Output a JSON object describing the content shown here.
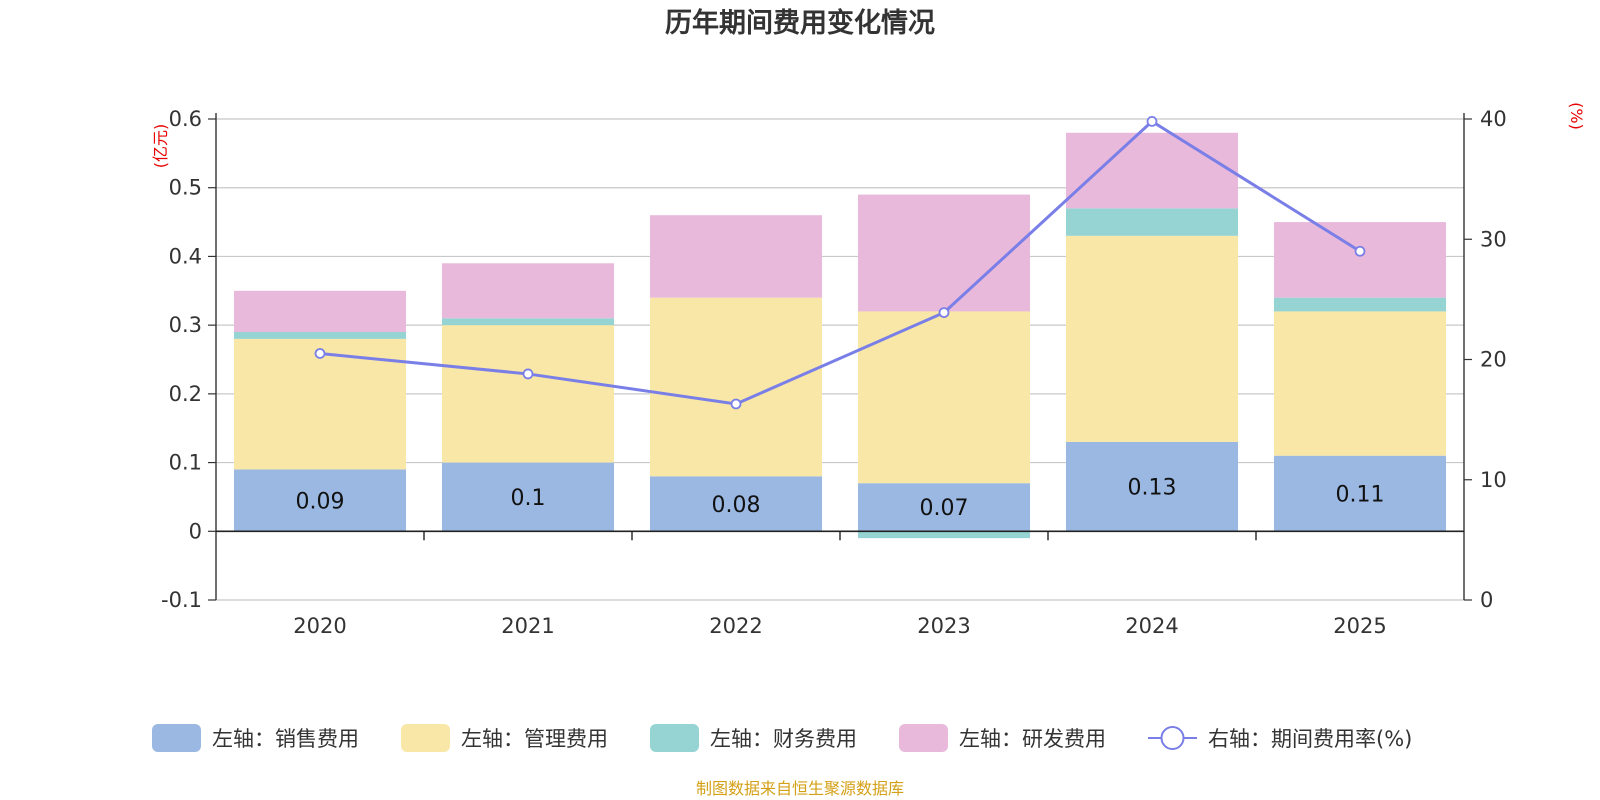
{
  "chart_data": {
    "type": "bar",
    "title": "历年期间费用变化情况",
    "categories": [
      "2020",
      "2021",
      "2022",
      "2023",
      "2024",
      "2025"
    ],
    "left_axis": {
      "unit": "(亿元)",
      "ylim": [
        -0.1,
        0.6
      ],
      "ticks": [
        -0.1,
        0,
        0.1,
        0.2,
        0.3,
        0.4,
        0.5,
        0.6
      ],
      "tick_labels": [
        "-0.1",
        "0",
        "0.1",
        "0.2",
        "0.3",
        "0.4",
        "0.5",
        "0.6"
      ]
    },
    "right_axis": {
      "unit": "(%)",
      "ylim": [
        0,
        40
      ],
      "ticks": [
        0,
        10,
        20,
        30,
        40
      ],
      "tick_labels": [
        "0",
        "10",
        "20",
        "30",
        "40"
      ]
    },
    "series": [
      {
        "name": "左轴：销售费用",
        "axis": "left",
        "kind": "bar",
        "color": "#9bb8e3",
        "values": [
          0.09,
          0.1,
          0.08,
          0.07,
          0.13,
          0.11
        ],
        "labels": [
          "0.09",
          "0.1",
          "0.08",
          "0.07",
          "0.13",
          "0.11"
        ]
      },
      {
        "name": "左轴：管理费用",
        "axis": "left",
        "kind": "bar",
        "color": "#f8e7a7",
        "values": [
          0.19,
          0.2,
          0.26,
          0.25,
          0.3,
          0.21
        ]
      },
      {
        "name": "左轴：财务费用",
        "axis": "left",
        "kind": "bar",
        "color": "#96d4d4",
        "values": [
          0.01,
          0.01,
          0.0,
          -0.01,
          0.04,
          0.02
        ]
      },
      {
        "name": "左轴：研发费用",
        "axis": "left",
        "kind": "bar",
        "color": "#e8b9da",
        "values": [
          0.06,
          0.08,
          0.12,
          0.17,
          0.11,
          0.11
        ]
      },
      {
        "name": "右轴：期间费用率(%)",
        "axis": "right",
        "kind": "line",
        "color": "#7a7fe8",
        "values": [
          20.5,
          18.8,
          16.3,
          23.9,
          39.8,
          29.0
        ]
      }
    ],
    "legend_position": "bottom",
    "grid": true
  },
  "footer": {
    "source": "制图数据来自恒生聚源数据库"
  }
}
